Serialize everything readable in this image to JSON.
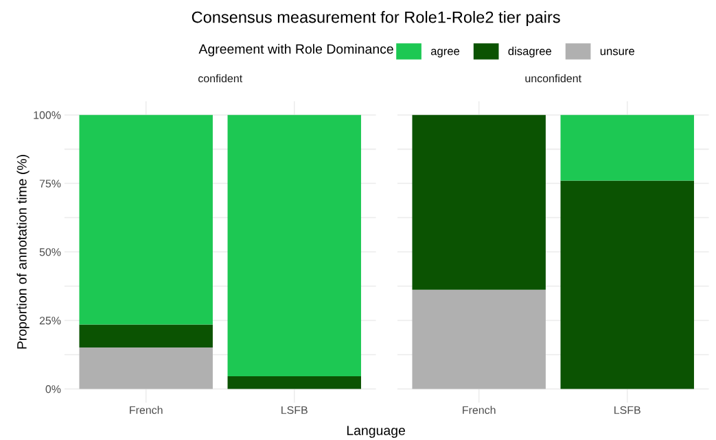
{
  "chart_data": [
    {
      "type": "bar",
      "title": "Consensus measurement for Role1-Role2 tier pairs",
      "subtitle": "confident",
      "legend_title": "Agreement with Role Dominance",
      "xlabel": "Language",
      "ylabel": "Proportion of annotation time (%)",
      "categories": [
        "French",
        "LSFB"
      ],
      "stacked": true,
      "legend": "top",
      "grid": true,
      "ylim": [
        -5,
        105
      ],
      "yticks": [
        {
          "value": 0,
          "label": "0%"
        },
        {
          "value": 12.5,
          "label": null
        },
        {
          "value": 25,
          "label": "25%"
        },
        {
          "value": 37.5,
          "label": null
        },
        {
          "value": 50,
          "label": "50%"
        },
        {
          "value": 62.5,
          "label": null
        },
        {
          "value": 75,
          "label": "75%"
        },
        {
          "value": 87.5,
          "label": null
        },
        {
          "value": 100,
          "label": "100%"
        }
      ],
      "series": [
        {
          "name": "unsure",
          "color": "#b0b0b0",
          "values": [
            15.1,
            0
          ]
        },
        {
          "name": "disagree",
          "color": "#0b5302",
          "values": [
            8.4,
            4.6
          ]
        },
        {
          "name": "agree",
          "color": "#1dc853",
          "values": [
            76.5,
            95.4
          ]
        }
      ]
    },
    {
      "type": "bar",
      "subtitle": "unconfident",
      "categories": [
        "French",
        "LSFB"
      ],
      "stacked": true,
      "grid": true,
      "tick_labels": "x",
      "ylim": [
        -5,
        105
      ],
      "yticks": [
        {
          "value": 0,
          "label": null
        },
        {
          "value": 12.5,
          "label": null
        },
        {
          "value": 25,
          "label": null
        },
        {
          "value": 37.5,
          "label": null
        },
        {
          "value": 50,
          "label": null
        },
        {
          "value": 62.5,
          "label": null
        },
        {
          "value": 75,
          "label": null
        },
        {
          "value": 87.5,
          "label": null
        },
        {
          "value": 100,
          "label": null
        }
      ],
      "series": [
        {
          "color": "#b0b0b0",
          "values": [
            36.2,
            0
          ]
        },
        {
          "color": "#0b5302",
          "values": [
            63.8,
            76.0
          ]
        },
        {
          "color": "#1dc853",
          "values": [
            0,
            24.0
          ]
        }
      ]
    }
  ]
}
